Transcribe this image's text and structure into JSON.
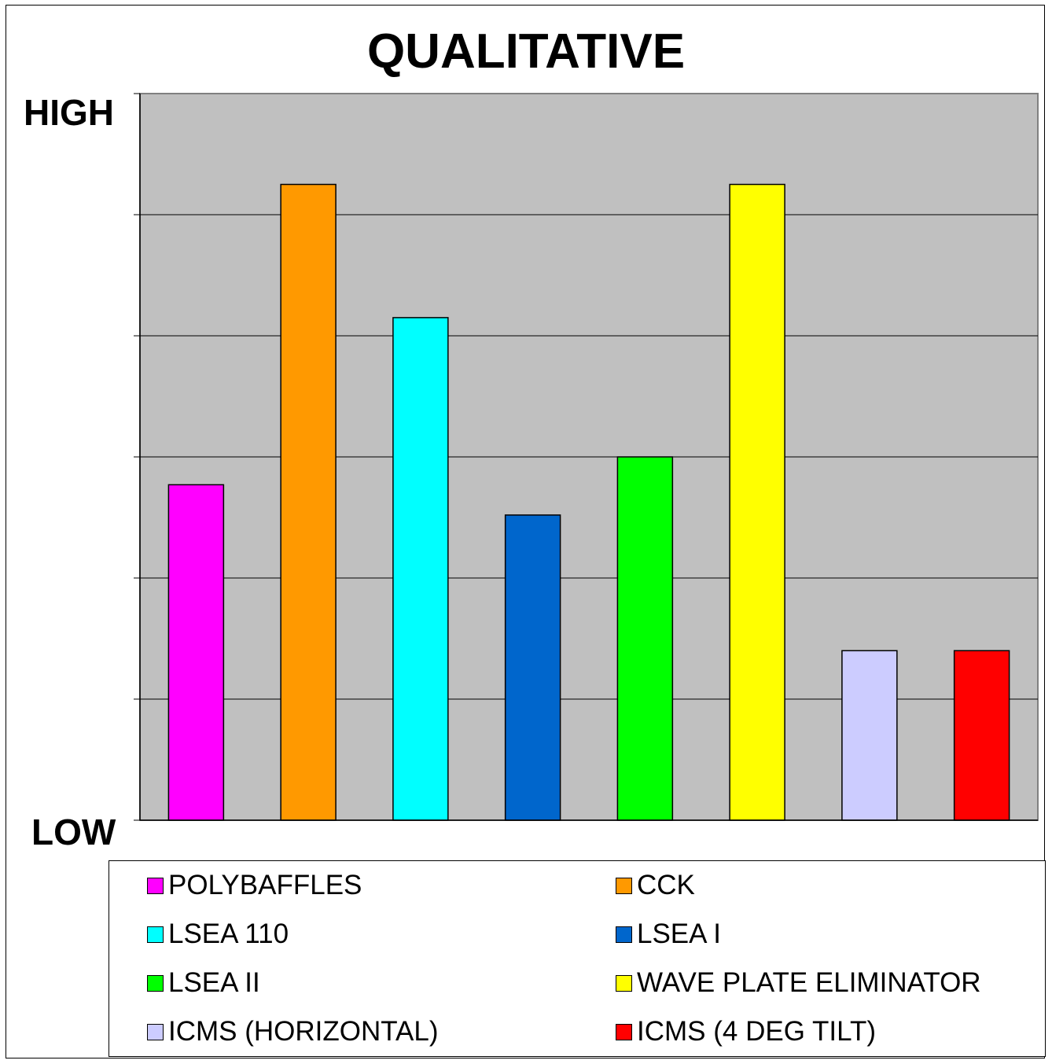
{
  "chart_data": {
    "type": "bar",
    "title": "QUALITATIVE",
    "y_axis_top_label": "HIGH",
    "y_axis_bottom_label": "LOW",
    "ylim": [
      0,
      6
    ],
    "grid": true,
    "legend_position": "bottom",
    "plot_background": "#c0c0c0",
    "categories": [
      "POLYBAFFLES",
      "CCK",
      "LSEA 110",
      "LSEA I",
      "LSEA II",
      "WAVE PLATE ELIMINATOR",
      "ICMS (HORIZONTAL)",
      "ICMS (4 DEG TILT)"
    ],
    "values": [
      2.77,
      5.25,
      4.15,
      2.52,
      3.0,
      5.25,
      1.4,
      1.4
    ],
    "colors": [
      "#ff00ff",
      "#ff9900",
      "#00ffff",
      "#0066cc",
      "#00ff00",
      "#ffff00",
      "#ccccff",
      "#ff0000"
    ]
  }
}
